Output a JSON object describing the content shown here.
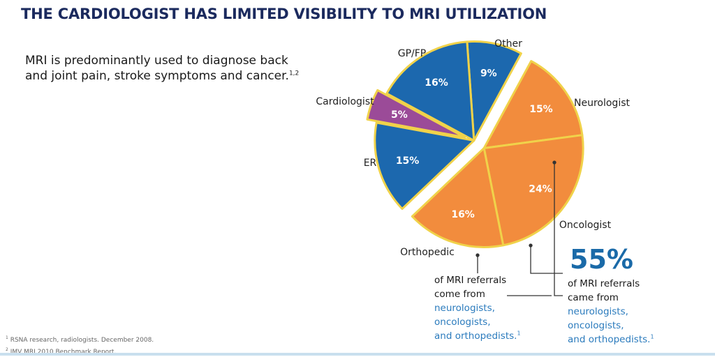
{
  "header": {
    "title": "THE CARDIOLOGIST HAS LIMITED VISIBILITY TO MRI UTILIZATION"
  },
  "intro": {
    "text": "MRI is predominantly used to diagnose back and joint pain, stroke symptoms and cancer.",
    "refs": "1,2"
  },
  "chart_data": {
    "type": "pie",
    "title": "",
    "start_angle_deg": -4,
    "explode_label": "Cardiologist",
    "slices": [
      {
        "label": "Other",
        "value": 9,
        "display": "9%",
        "color": "#1c68ae",
        "group": "left"
      },
      {
        "label": "Neurologist",
        "value": 15,
        "display": "15%",
        "color": "#f28c3d",
        "group": "right"
      },
      {
        "label": "Oncologist",
        "value": 24,
        "display": "24%",
        "color": "#f28c3d",
        "group": "right"
      },
      {
        "label": "Orthopedic",
        "value": 16,
        "display": "16%",
        "color": "#f28c3d",
        "group": "right"
      },
      {
        "label": "ER",
        "value": 15,
        "display": "15%",
        "color": "#1c68ae",
        "group": "left"
      },
      {
        "label": "Cardiologist",
        "value": 5,
        "display": "5%",
        "color": "#9b4b98",
        "group": "left"
      },
      {
        "label": "GP/FP",
        "value": 16,
        "display": "16%",
        "color": "#1c68ae",
        "group": "left"
      }
    ]
  },
  "callouts": {
    "left": {
      "line1": "of MRI referrals",
      "line2": "come from",
      "line3": "neurologists,",
      "line4": "oncologists,",
      "line5": "and orthopedists.",
      "ref": "1"
    },
    "right": {
      "big_value": "55%",
      "line1": "of MRI referrals",
      "line2": "came from",
      "line3": "neurologists,",
      "line4": "oncologists,",
      "line5": "and orthopedists.",
      "ref": "1"
    }
  },
  "footnotes": {
    "f1_num": "1",
    "f1_text": "RSNA research, radiologists. December 2008.",
    "f2_num": "2",
    "f2_text": "IMV MRI 2010 Benchmark Report."
  }
}
